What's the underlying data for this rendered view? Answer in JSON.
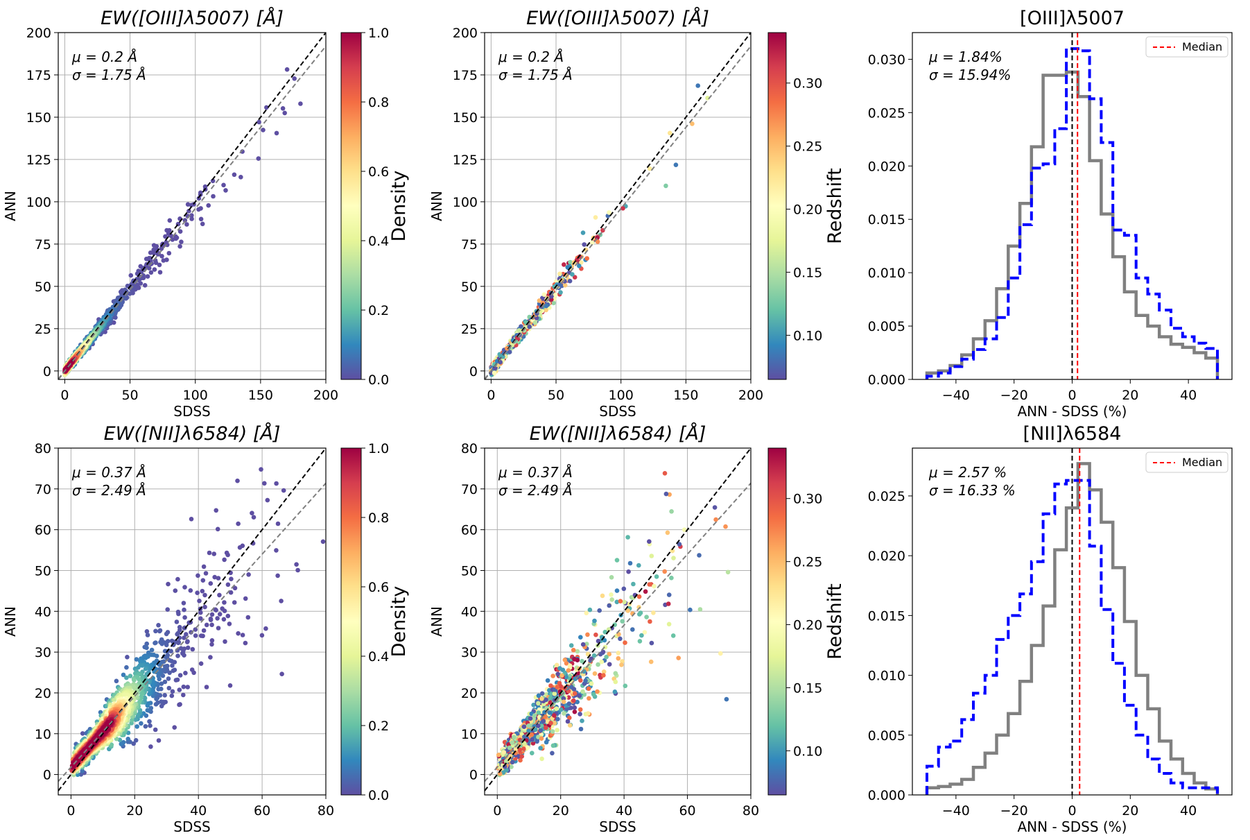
{
  "chart_data": [
    {
      "type": "scatter",
      "panel": "oiii-density",
      "title": "EW([OIII]λ5007) [Å]",
      "xlabel": "SDSS",
      "ylabel": "ANN",
      "xlim": [
        -5,
        200
      ],
      "ylim": [
        -5,
        200
      ],
      "xticks": [
        0,
        50,
        100,
        150,
        200
      ],
      "yticks": [
        0,
        25,
        50,
        75,
        100,
        125,
        150,
        175,
        200
      ],
      "stats": [
        "μ = 0.2 Å",
        "σ = 1.75 Å"
      ],
      "fit_slope": 0.96,
      "colorbar": {
        "label": "Density",
        "min": 0.0,
        "max": 1.0,
        "ticks": [
          "0.0",
          "0.2",
          "0.4",
          "0.6",
          "0.8",
          "1.0"
        ],
        "tick_values": [
          0.0,
          0.2,
          0.4,
          0.6,
          0.8,
          1.0
        ]
      },
      "color_by": "density",
      "n_points": 700,
      "spread": 0.07,
      "spread_min": 1.5,
      "dist_scale": 28,
      "dist_max": 198,
      "seed": 11
    },
    {
      "type": "scatter",
      "panel": "oiii-redshift",
      "title": "EW([OIII]λ5007) [Å]",
      "xlabel": "SDSS",
      "ylabel": "ANN",
      "xlim": [
        -5,
        200
      ],
      "ylim": [
        -5,
        200
      ],
      "xticks": [
        0,
        50,
        100,
        150,
        200
      ],
      "yticks": [
        0,
        25,
        50,
        75,
        100,
        125,
        150,
        175,
        200
      ],
      "stats": [
        "μ = 0.2 Å",
        "σ = 1.75 Å"
      ],
      "fit_slope": 0.96,
      "colorbar": {
        "label": "Redshift",
        "min": 0.065,
        "max": 0.34,
        "ticks": [
          "0.10",
          "0.15",
          "0.20",
          "0.25",
          "0.30"
        ],
        "tick_values": [
          0.1,
          0.15,
          0.2,
          0.25,
          0.3
        ]
      },
      "color_by": "redshift",
      "n_points": 560,
      "spread": 0.07,
      "spread_min": 1.5,
      "dist_scale": 28,
      "dist_max": 198,
      "seed": 23
    },
    {
      "type": "histogram",
      "panel": "oiii-hist",
      "title": "[OIII]λ5007",
      "xlabel": "ANN - SDSS (%)",
      "ylabel": "",
      "xlim": [
        -55,
        55
      ],
      "ylim": [
        0,
        0.0325
      ],
      "xticks": [
        -40,
        -20,
        0,
        20,
        40
      ],
      "xtick_labels": [
        "−40",
        "−20",
        "0",
        "20",
        "40"
      ],
      "yticks": [
        0,
        0.005,
        0.01,
        0.015,
        0.02,
        0.025,
        0.03
      ],
      "ytick_labels": [
        "0.000",
        "0.005",
        "0.010",
        "0.015",
        "0.020",
        "0.025",
        "0.030"
      ],
      "stats": [
        "μ = 1.84%",
        "σ = 15.94%"
      ],
      "median": 1.84,
      "legend": "Median",
      "bin_edges": [
        -50,
        -46,
        -42,
        -38,
        -34,
        -30,
        -26,
        -22,
        -18,
        -14,
        -10,
        -6,
        -2,
        2,
        6,
        10,
        14,
        18,
        22,
        26,
        30,
        34,
        38,
        42,
        46,
        50
      ],
      "series": [
        {
          "name": "grey",
          "values": [
            0.0006,
            0.0008,
            0.0013,
            0.0023,
            0.0038,
            0.0055,
            0.0085,
            0.0125,
            0.0165,
            0.0218,
            0.0285,
            0.0285,
            0.0288,
            0.0265,
            0.0205,
            0.0155,
            0.0115,
            0.0082,
            0.006,
            0.005,
            0.004,
            0.0033,
            0.003,
            0.0025,
            0.002
          ]
        },
        {
          "name": "blue",
          "values": [
            0.0003,
            0.0006,
            0.0012,
            0.0019,
            0.0028,
            0.0038,
            0.0058,
            0.0095,
            0.0145,
            0.0198,
            0.0202,
            0.0235,
            0.031,
            0.0308,
            0.0263,
            0.0222,
            0.014,
            0.0135,
            0.0095,
            0.008,
            0.0065,
            0.0048,
            0.004,
            0.0034,
            0.0029
          ]
        }
      ]
    },
    {
      "type": "scatter",
      "panel": "nii-density",
      "title": "EW([NII]λ6584) [Å]",
      "xlabel": "SDSS",
      "ylabel": "ANN",
      "xlim": [
        -4,
        80
      ],
      "ylim": [
        -5,
        80
      ],
      "xticks": [
        0,
        20,
        40,
        60,
        80
      ],
      "yticks": [
        0,
        10,
        20,
        30,
        40,
        50,
        60,
        70,
        80
      ],
      "stats": [
        "μ = 0.37 Å",
        "σ = 2.49 Å"
      ],
      "fit_slope": 0.87,
      "fit_intercept": 1.8,
      "colorbar": {
        "label": "Density",
        "min": 0.0,
        "max": 1.0,
        "ticks": [
          "0.0",
          "0.2",
          "0.4",
          "0.6",
          "0.8",
          "1.0"
        ],
        "tick_values": [
          0.0,
          0.2,
          0.4,
          0.6,
          0.8,
          1.0
        ]
      },
      "color_by": "density",
      "n_points": 1500,
      "spread": 0.22,
      "spread_min": 1.5,
      "dist_scale": 13,
      "dist_offset": 3,
      "dist_max": 80,
      "seed": 37
    },
    {
      "type": "scatter",
      "panel": "nii-redshift",
      "title": "EW([NII]λ6584) [Å]",
      "xlabel": "SDSS",
      "ylabel": "ANN",
      "xlim": [
        -4,
        80
      ],
      "ylim": [
        -5,
        80
      ],
      "xticks": [
        0,
        20,
        40,
        60,
        80
      ],
      "yticks": [
        0,
        10,
        20,
        30,
        40,
        50,
        60,
        70,
        80
      ],
      "stats": [
        "μ = 0.37 Å",
        "σ = 2.49 Å"
      ],
      "fit_slope": 0.87,
      "fit_intercept": 1.8,
      "colorbar": {
        "label": "Redshift",
        "min": 0.065,
        "max": 0.34,
        "ticks": [
          "0.10",
          "0.15",
          "0.20",
          "0.25",
          "0.30"
        ],
        "tick_values": [
          0.1,
          0.15,
          0.2,
          0.25,
          0.3
        ]
      },
      "color_by": "redshift",
      "n_points": 1300,
      "spread": 0.22,
      "spread_min": 1.5,
      "dist_scale": 13,
      "dist_offset": 3,
      "dist_max": 80,
      "seed": 53
    },
    {
      "type": "histogram",
      "panel": "nii-hist",
      "title": "[NII]λ6584",
      "xlabel": "ANN - SDSS (%)",
      "ylabel": "",
      "xlim": [
        -55,
        55
      ],
      "ylim": [
        0,
        0.029
      ],
      "xticks": [
        -40,
        -20,
        0,
        20,
        40
      ],
      "xtick_labels": [
        "−40",
        "−20",
        "0",
        "20",
        "40"
      ],
      "yticks": [
        0,
        0.005,
        0.01,
        0.015,
        0.02,
        0.025
      ],
      "ytick_labels": [
        "0.000",
        "0.005",
        "0.010",
        "0.015",
        "0.020",
        "0.025"
      ],
      "stats": [
        "μ = 2.57 %",
        "σ = 16.33 %"
      ],
      "median": 2.57,
      "legend": "Median",
      "bin_edges": [
        -50,
        -46,
        -42,
        -38,
        -34,
        -30,
        -26,
        -22,
        -18,
        -14,
        -10,
        -6,
        -2,
        2,
        6,
        10,
        14,
        18,
        22,
        26,
        30,
        34,
        38,
        42,
        46,
        50
      ],
      "series": [
        {
          "name": "grey",
          "values": [
            0.0006,
            0.0007,
            0.0009,
            0.0013,
            0.0023,
            0.0035,
            0.005,
            0.0068,
            0.0095,
            0.0125,
            0.0158,
            0.0205,
            0.024,
            0.0277,
            0.0255,
            0.0228,
            0.019,
            0.0145,
            0.01,
            0.0072,
            0.0045,
            0.003,
            0.0018,
            0.001,
            0.0005
          ]
        },
        {
          "name": "blue",
          "values": [
            0.0024,
            0.004,
            0.0045,
            0.0063,
            0.0085,
            0.01,
            0.013,
            0.015,
            0.0168,
            0.0195,
            0.0235,
            0.026,
            0.0263,
            0.0263,
            0.0208,
            0.0155,
            0.011,
            0.0075,
            0.005,
            0.003,
            0.0018,
            0.001,
            0.0006,
            0.0006,
            0.0006
          ]
        }
      ]
    }
  ]
}
